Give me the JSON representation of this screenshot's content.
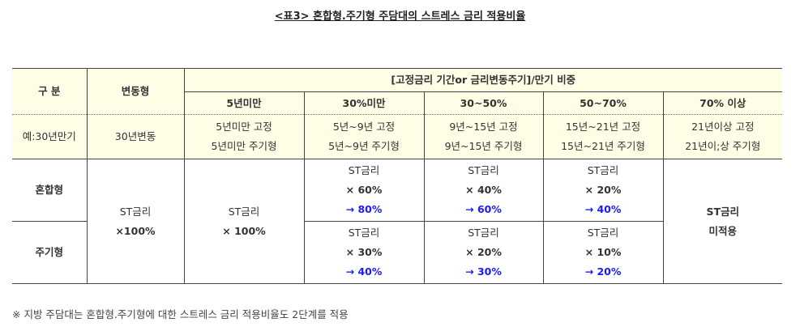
{
  "title": "<표3> 혼합형.주기형 주담대의 스트레스 금리 적용비율",
  "header": {
    "col1": "구 분",
    "col2": "변동형",
    "group": "[고정금리 기간or 금리변동주기]/만기 비중",
    "buckets": [
      "5년미만",
      "30%미만",
      "30~50%",
      "50~70%",
      "70% 이상"
    ]
  },
  "example": {
    "label": "예:30년만기",
    "variable": "30년변동",
    "cells": [
      [
        "5년미만 고정",
        "5년미만 주기형"
      ],
      [
        "5년~9년 고정",
        "5년~9년 주기형"
      ],
      [
        "9년~15년 고정",
        "9년~15년 주기형"
      ],
      [
        "15년~21년 고정",
        "15년~21년 주기형"
      ],
      [
        "21년이상 고정",
        "21년이;상 주기형"
      ]
    ]
  },
  "rows": {
    "variable": [
      "ST금리",
      "×100%"
    ],
    "under5": [
      "ST금리",
      "× 100%"
    ],
    "over70": [
      "ST금리",
      "미적용"
    ],
    "mixed": {
      "label": "혼합형",
      "cells": [
        [
          "ST금리",
          "× 60%",
          "→ 80%"
        ],
        [
          "ST금리",
          "× 40%",
          "→ 60%"
        ],
        [
          "ST금리",
          "× 20%",
          "→ 40%"
        ]
      ]
    },
    "periodic": {
      "label": "주기형",
      "cells": [
        [
          "ST금리",
          "× 30%",
          "→ 40%"
        ],
        [
          "ST금리",
          "× 20%",
          "→ 30%"
        ],
        [
          "ST금리",
          "× 10%",
          "→ 20%"
        ]
      ]
    }
  },
  "note": "※ 지방 주담대는 혼합형.주기형에 대한 스트레스 금리 적용비율도 2단계를 적용",
  "colors": {
    "header_bg": "#fffde6",
    "accent": "#1a1aff"
  }
}
